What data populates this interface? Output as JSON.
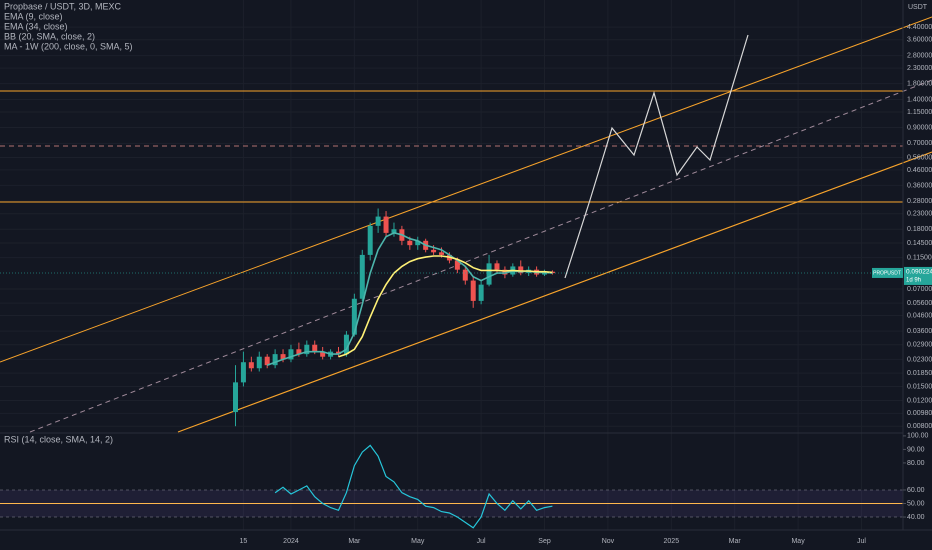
{
  "chart_data": [
    {
      "type": "candlestick",
      "title": "Propbase / USDT, 3D, MEXC",
      "unit": "USDT",
      "log_scale": true,
      "grid": true,
      "up_color": "#26a69a",
      "down_color": "#ef5350",
      "x": [
        -1.75,
        -1.5,
        -1.25,
        -1.0,
        -0.75,
        -0.5,
        -0.25,
        0,
        0.25,
        0.5,
        0.75,
        1.0,
        1.25,
        1.5,
        1.75,
        2.0,
        2.25,
        2.5,
        2.75,
        3.0,
        3.25,
        3.5,
        3.75,
        4.0,
        4.25,
        4.5,
        4.75,
        5.0,
        5.25,
        5.5,
        5.75,
        6.0,
        6.25,
        6.5,
        6.75,
        7.0,
        7.25,
        7.5,
        7.75,
        8.0,
        8.25
      ],
      "candles": [
        [
          0.01,
          0.021,
          0.008,
          0.016
        ],
        [
          0.016,
          0.026,
          0.015,
          0.022
        ],
        [
          0.022,
          0.024,
          0.019,
          0.02
        ],
        [
          0.02,
          0.026,
          0.019,
          0.024
        ],
        [
          0.024,
          0.025,
          0.02,
          0.021
        ],
        [
          0.021,
          0.027,
          0.02,
          0.025
        ],
        [
          0.025,
          0.027,
          0.022,
          0.023
        ],
        [
          0.023,
          0.029,
          0.022,
          0.027
        ],
        [
          0.027,
          0.03,
          0.024,
          0.025
        ],
        [
          0.025,
          0.031,
          0.024,
          0.029
        ],
        [
          0.029,
          0.031,
          0.025,
          0.026
        ],
        [
          0.026,
          0.028,
          0.023,
          0.024
        ],
        [
          0.024,
          0.027,
          0.023,
          0.026
        ],
        [
          0.026,
          0.028,
          0.024,
          0.025
        ],
        [
          0.025,
          0.036,
          0.024,
          0.034
        ],
        [
          0.034,
          0.065,
          0.033,
          0.06
        ],
        [
          0.06,
          0.13,
          0.058,
          0.12
        ],
        [
          0.12,
          0.2,
          0.11,
          0.19
        ],
        [
          0.19,
          0.25,
          0.17,
          0.22
        ],
        [
          0.22,
          0.24,
          0.16,
          0.17
        ],
        [
          0.17,
          0.2,
          0.16,
          0.18
        ],
        [
          0.18,
          0.19,
          0.14,
          0.15
        ],
        [
          0.15,
          0.16,
          0.13,
          0.14
        ],
        [
          0.14,
          0.16,
          0.13,
          0.15
        ],
        [
          0.15,
          0.155,
          0.125,
          0.13
        ],
        [
          0.13,
          0.14,
          0.12,
          0.125
        ],
        [
          0.125,
          0.135,
          0.115,
          0.12
        ],
        [
          0.12,
          0.125,
          0.105,
          0.11
        ],
        [
          0.11,
          0.115,
          0.09,
          0.095
        ],
        [
          0.095,
          0.1,
          0.075,
          0.08
        ],
        [
          0.08,
          0.085,
          0.052,
          0.058
        ],
        [
          0.058,
          0.08,
          0.055,
          0.075
        ],
        [
          0.075,
          0.12,
          0.073,
          0.105
        ],
        [
          0.105,
          0.11,
          0.09,
          0.095
        ],
        [
          0.095,
          0.1,
          0.083,
          0.088
        ],
        [
          0.088,
          0.105,
          0.085,
          0.1
        ],
        [
          0.1,
          0.11,
          0.087,
          0.09
        ],
        [
          0.09,
          0.1,
          0.086,
          0.095
        ],
        [
          0.095,
          0.1,
          0.085,
          0.088
        ],
        [
          0.088,
          0.095,
          0.086,
          0.092
        ],
        [
          0.092,
          0.094,
          0.088,
          0.09
        ]
      ],
      "series": [
        {
          "name": "EMA (9, close)",
          "color": "#4db6ac",
          "values": [
            null,
            null,
            null,
            null,
            0.021,
            0.022,
            0.023,
            0.024,
            0.025,
            0.026,
            0.026,
            0.026,
            0.025,
            0.025,
            0.027,
            0.035,
            0.055,
            0.09,
            0.13,
            0.16,
            0.17,
            0.165,
            0.155,
            0.15,
            0.14,
            0.135,
            0.13,
            0.12,
            0.11,
            0.1,
            0.085,
            0.08,
            0.085,
            0.09,
            0.09,
            0.093,
            0.092,
            0.093,
            0.091,
            0.091,
            0.09
          ]
        },
        {
          "name": "EMA (34, close)",
          "color": "#fff176",
          "values": [
            null,
            null,
            null,
            null,
            null,
            null,
            null,
            null,
            null,
            null,
            null,
            null,
            null,
            0.024,
            0.025,
            0.027,
            0.033,
            0.045,
            0.06,
            0.075,
            0.09,
            0.1,
            0.108,
            0.113,
            0.116,
            0.118,
            0.118,
            0.116,
            0.112,
            0.106,
            0.098,
            0.094,
            0.094,
            0.094,
            0.093,
            0.094,
            0.093,
            0.093,
            0.092,
            0.092,
            0.091
          ]
        }
      ],
      "indicators": [
        "BB (20, SMA, close, 2)",
        "MA - 1W (200, close, 0, SMA, 5)"
      ],
      "last_price": 0.090224,
      "ticker": "PROPUSDT",
      "countdown": "1d 9h",
      "xlim": [
        -9.18,
        19.31
      ],
      "xticks": [
        {
          "value": -1.5,
          "label": "15"
        },
        {
          "value": 0,
          "label": "2024"
        },
        {
          "value": 2,
          "label": "Mar"
        },
        {
          "value": 4,
          "label": "May"
        },
        {
          "value": 6,
          "label": "Jul"
        },
        {
          "value": 8,
          "label": "Sep"
        },
        {
          "value": 10,
          "label": "Nov"
        },
        {
          "value": 12,
          "label": "2025"
        },
        {
          "value": 14,
          "label": "Mar"
        },
        {
          "value": 16,
          "label": "May"
        },
        {
          "value": 18,
          "label": "Jul"
        }
      ],
      "ylim": [
        0.0073,
        6.75
      ],
      "yticks": [
        {
          "value": 4.4,
          "label": "4.400000"
        },
        {
          "value": 3.6,
          "label": "3.600000"
        },
        {
          "value": 2.8,
          "label": "2.800000"
        },
        {
          "value": 2.3,
          "label": "2.300000"
        },
        {
          "value": 1.8,
          "label": "1.800000"
        },
        {
          "value": 1.4,
          "label": "1.400000"
        },
        {
          "value": 1.15,
          "label": "1.150000"
        },
        {
          "value": 0.9,
          "label": "0.900000"
        },
        {
          "value": 0.7,
          "label": "0.700000"
        },
        {
          "value": 0.56,
          "label": "0.560000"
        },
        {
          "value": 0.46,
          "label": "0.460000"
        },
        {
          "value": 0.36,
          "label": "0.360000"
        },
        {
          "value": 0.28,
          "label": "0.280000"
        },
        {
          "value": 0.23,
          "label": "0.230000"
        },
        {
          "value": 0.18,
          "label": "0.180000"
        },
        {
          "value": 0.145,
          "label": "0.145000"
        },
        {
          "value": 0.115,
          "label": "0.115000"
        },
        {
          "value": 0.07,
          "label": "0.070000"
        },
        {
          "value": 0.056,
          "label": "0.056000"
        },
        {
          "value": 0.046,
          "label": "0.046000"
        },
        {
          "value": 0.036,
          "label": "0.036000"
        },
        {
          "value": 0.029,
          "label": "0.029000"
        },
        {
          "value": 0.023,
          "label": "0.023000"
        },
        {
          "value": 0.0185,
          "label": "0.018500"
        },
        {
          "value": 0.015,
          "label": "0.015000"
        },
        {
          "value": 0.012,
          "label": "0.012000"
        },
        {
          "value": 0.0098,
          "label": "0.009800"
        },
        {
          "value": 0.008,
          "label": "0.008000"
        }
      ]
    },
    {
      "type": "line",
      "title": "RSI (14, close, SMA, 14, 2)",
      "color": "#26c6da",
      "values": [
        null,
        null,
        null,
        null,
        null,
        58,
        62,
        57,
        60,
        63,
        55,
        50,
        47,
        45,
        58,
        78,
        88,
        93,
        85,
        70,
        66,
        58,
        55,
        53,
        48,
        47,
        44,
        43,
        40,
        36,
        32,
        40,
        57,
        50,
        45,
        52,
        46,
        52,
        45,
        47,
        48
      ],
      "band": [
        40,
        60
      ],
      "level": 50,
      "level_color": "#ffb74d",
      "ylim": [
        30.4,
        101.4
      ],
      "yticks": [
        {
          "value": 100,
          "label": "100.00"
        },
        {
          "value": 90,
          "label": "90.00"
        },
        {
          "value": 80,
          "label": "80.00"
        },
        {
          "value": 60,
          "label": "60.00"
        },
        {
          "value": 50,
          "label": "50.00"
        },
        {
          "value": 40,
          "label": "40.00"
        }
      ]
    }
  ]
}
